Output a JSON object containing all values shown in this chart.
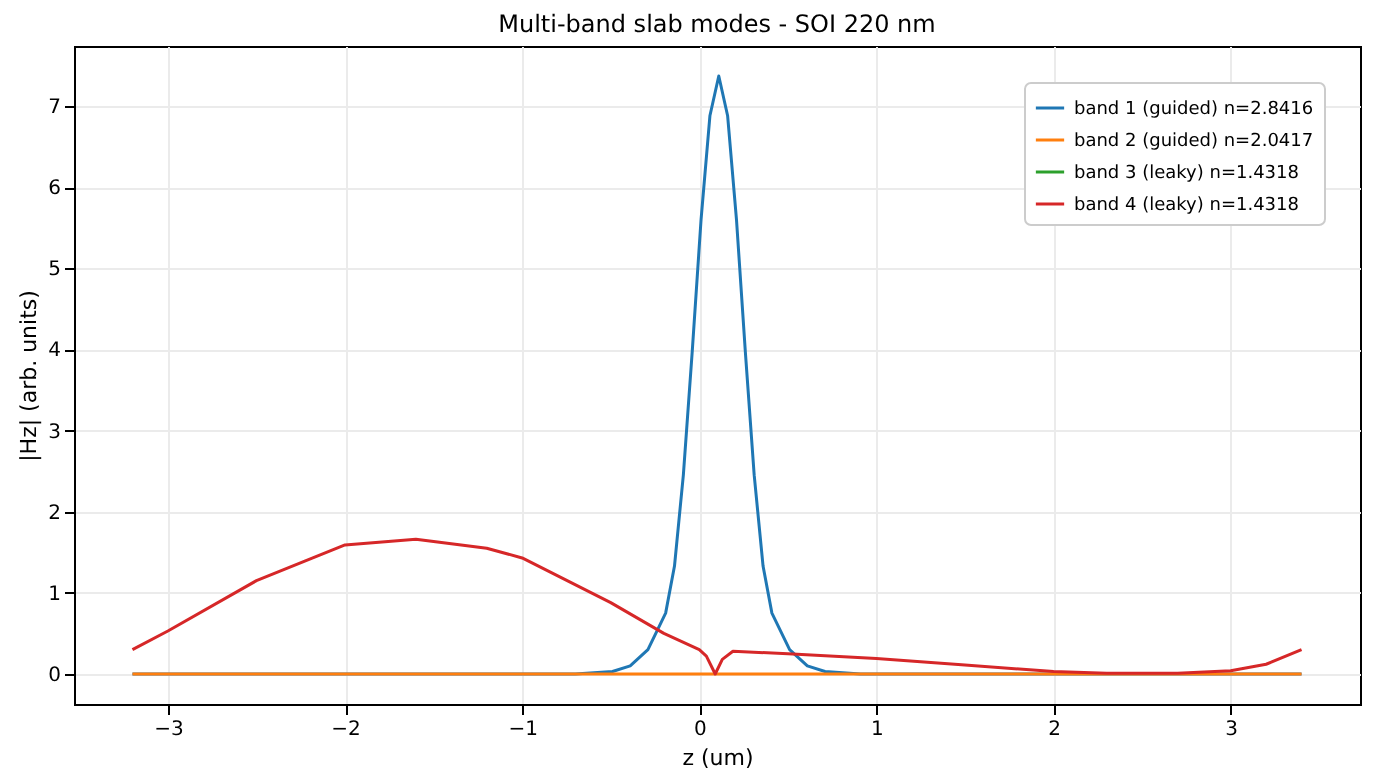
{
  "chart_data": {
    "type": "line",
    "title": "Multi-band slab modes - SOI 220 nm",
    "xlabel": "z (um)",
    "ylabel": "|Hz| (arb. units)",
    "xlim": [
      -3.53,
      3.73
    ],
    "ylim": [
      -0.37,
      7.74
    ],
    "xticks": [
      -3,
      -2,
      -1,
      0,
      1,
      2,
      3
    ],
    "yticks": [
      0,
      1,
      2,
      3,
      4,
      5,
      6,
      7
    ],
    "grid": true,
    "legend": "top right",
    "series": [
      {
        "name": "band 1 (guided) n=2.8416",
        "color": "#1f77b4",
        "x": [
          -3.2,
          -0.7,
          -0.49,
          -0.39,
          -0.29,
          -0.19,
          -0.14,
          -0.09,
          -0.04,
          0.01,
          0.06,
          0.11,
          0.16,
          0.21,
          0.26,
          0.31,
          0.36,
          0.41,
          0.51,
          0.61,
          0.71,
          0.91,
          3.4
        ],
        "values": [
          0,
          0,
          0.03,
          0.1,
          0.3,
          0.75,
          1.33,
          2.45,
          3.97,
          5.6,
          6.88,
          7.37,
          6.88,
          5.6,
          3.97,
          2.45,
          1.33,
          0.75,
          0.3,
          0.1,
          0.03,
          0,
          0
        ]
      },
      {
        "name": "band 2 (guided) n=2.0417",
        "color": "#ff7f0e",
        "x": [
          -3.2,
          3.4
        ],
        "values": [
          0,
          0
        ]
      },
      {
        "name": "band 3 (leaky) n=1.4318",
        "color": "#2ca02c"
      },
      {
        "name": "band 4 (leaky) n=1.4318",
        "color": "#d62728",
        "x": [
          -3.2,
          -3,
          -2.5,
          -2,
          -1.6,
          -1.2,
          -1,
          -0.5,
          -0.2,
          0,
          0.04,
          0.09,
          0.13,
          0.19,
          0.5,
          1,
          1.5,
          2,
          2.3,
          2.7,
          3,
          3.2,
          3.4
        ],
        "values": [
          0.3,
          0.53,
          1.15,
          1.59,
          1.66,
          1.55,
          1.43,
          0.88,
          0.5,
          0.3,
          0.22,
          0,
          0.18,
          0.28,
          0.25,
          0.19,
          0.11,
          0.03,
          0.01,
          0.01,
          0.04,
          0.12,
          0.3
        ]
      }
    ]
  }
}
